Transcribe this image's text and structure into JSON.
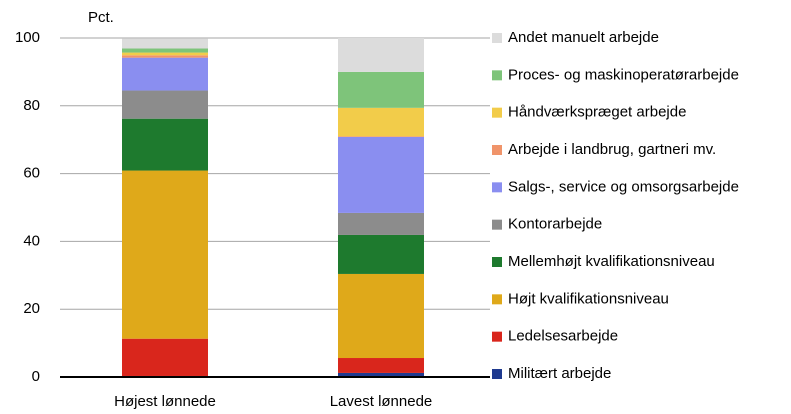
{
  "chart_data": {
    "type": "stacked_bar",
    "y_label": "Pct.",
    "categories": [
      "Højest lønnede",
      "Lavest lønnede"
    ],
    "series": [
      {
        "name": "Militært arbejde",
        "color": "#1f3a8f",
        "values": [
          0.3,
          1.2
        ]
      },
      {
        "name": "Ledelsesarbejde",
        "color": "#d9261c",
        "values": [
          11,
          4.4
        ]
      },
      {
        "name": "Højt kvalifikationsniveau",
        "color": "#dfa91a",
        "values": [
          49.6,
          24.8
        ]
      },
      {
        "name": "Mellemhøjt kvalifikationsniveau",
        "color": "#1e7a2e",
        "values": [
          15.3,
          11.5
        ]
      },
      {
        "name": "Kontorarbejde",
        "color": "#8c8c8c",
        "values": [
          8.3,
          6.5
        ]
      },
      {
        "name": "Salgs-, service og omsorgsarbejde",
        "color": "#8a8ef0",
        "values": [
          9.7,
          22.4
        ]
      },
      {
        "name": "Arbejde i landbrug, gartneri mv.",
        "color": "#f0946a",
        "values": [
          0.7,
          0.2
        ]
      },
      {
        "name": "Håndværkspræget arbejde",
        "color": "#f2cc4a",
        "values": [
          0.8,
          8.4
        ]
      },
      {
        "name": "Proces- og maskinoperatørarbejde",
        "color": "#7ec47a",
        "values": [
          1.2,
          10.6
        ]
      },
      {
        "name": "Andet manuelt arbejde",
        "color": "#dcdcdc",
        "values": [
          3,
          10
        ]
      }
    ],
    "ylim": [
      0,
      100
    ],
    "yticks": [
      0,
      20,
      40,
      60,
      80,
      100
    ],
    "grid": true,
    "legend": "right"
  }
}
